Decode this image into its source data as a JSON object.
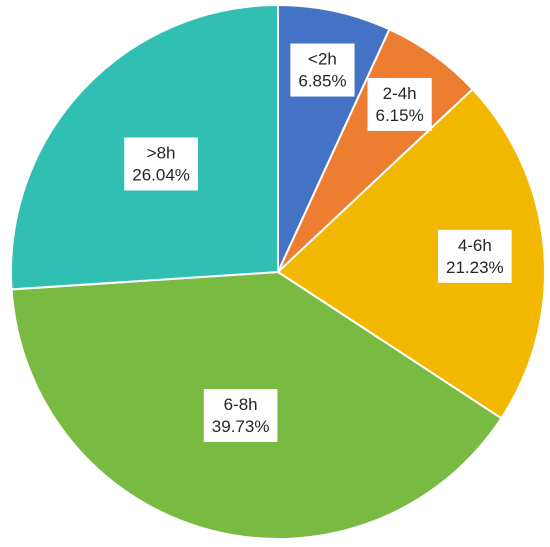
{
  "chart_data": {
    "type": "pie",
    "title": "",
    "legend": "none",
    "start_angle_deg": 0,
    "direction": "clockwise",
    "slices": [
      {
        "label": "<2h",
        "value": 6.85,
        "value_label": "6.85%",
        "color": "#4472C4"
      },
      {
        "label": "2-4h",
        "value": 6.15,
        "value_label": "6.15%",
        "color": "#ED7D31"
      },
      {
        "label": "4-6h",
        "value": 21.23,
        "value_label": "21.23%",
        "color": "#F2B800"
      },
      {
        "label": "6-8h",
        "value": 39.73,
        "value_label": "39.73%",
        "color": "#78BA42"
      },
      {
        "label": ">8h",
        "value": 26.04,
        "value_label": "26.04%",
        "color": "#31BFB4"
      }
    ]
  }
}
